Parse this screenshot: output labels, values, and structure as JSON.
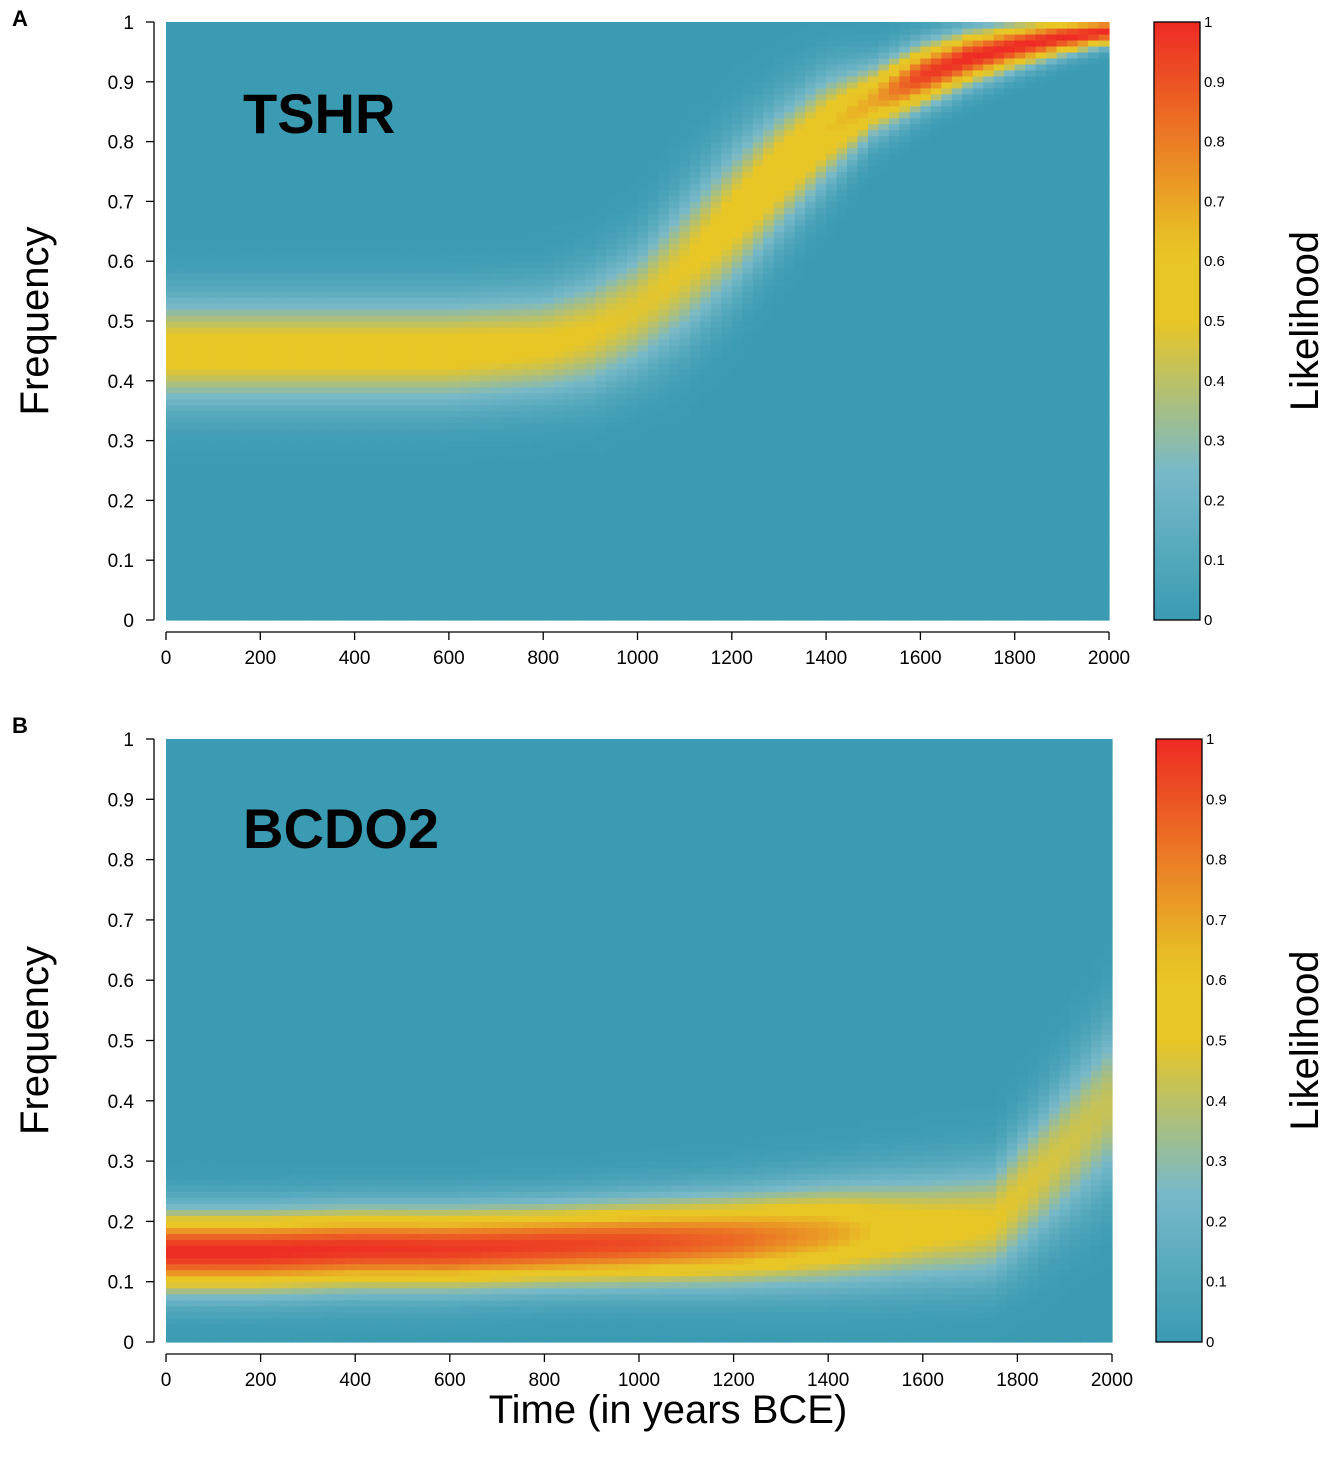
{
  "figure": {
    "xlabel": "Time (in years BCE)"
  },
  "colors": {
    "low": "#3a9bb3",
    "mid": "#e8c625",
    "high": "#ee2a24"
  },
  "chart_data": [
    {
      "type": "heatmap",
      "panel_label": "A",
      "gene_label": "TSHR",
      "xlabel": "Time (in years BCE)",
      "ylabel": "Frequency",
      "colorbar_label": "Likelihood",
      "xlim": [
        0,
        2000
      ],
      "ylim": [
        0,
        1
      ],
      "xticks": [
        "0",
        "200",
        "400",
        "600",
        "800",
        "1000",
        "1200",
        "1400",
        "1600",
        "1800",
        "2000"
      ],
      "yticks": [
        "0",
        "0.1",
        "0.2",
        "0.3",
        "0.4",
        "0.5",
        "0.6",
        "0.7",
        "0.8",
        "0.9",
        "1"
      ],
      "colorbar_ticks": [
        "0",
        "0.1",
        "0.2",
        "0.3",
        "0.4",
        "0.5",
        "0.6",
        "0.7",
        "0.8",
        "0.9",
        "1"
      ],
      "ridge": {
        "time": [
          0,
          200,
          400,
          600,
          800,
          900,
          1000,
          1100,
          1200,
          1300,
          1400,
          1500,
          1600,
          1700,
          1800,
          1900,
          2000
        ],
        "frequency": [
          0.45,
          0.45,
          0.45,
          0.45,
          0.46,
          0.48,
          0.52,
          0.59,
          0.67,
          0.75,
          0.82,
          0.87,
          0.91,
          0.94,
          0.96,
          0.975,
          0.985
        ],
        "likelihood": [
          0.55,
          0.55,
          0.55,
          0.55,
          0.52,
          0.5,
          0.48,
          0.5,
          0.55,
          0.6,
          0.62,
          0.7,
          0.95,
          1.0,
          1.0,
          1.0,
          1.0
        ],
        "width": [
          0.06,
          0.06,
          0.06,
          0.06,
          0.06,
          0.065,
          0.07,
          0.08,
          0.08,
          0.07,
          0.06,
          0.04,
          0.035,
          0.03,
          0.025,
          0.02,
          0.015
        ]
      }
    },
    {
      "type": "heatmap",
      "panel_label": "B",
      "gene_label": "BCDO2",
      "xlabel": "Time (in years BCE)",
      "ylabel": "Frequency",
      "colorbar_label": "Likelihood",
      "xlim": [
        0,
        2000
      ],
      "ylim": [
        0,
        1
      ],
      "xticks": [
        "0",
        "200",
        "400",
        "600",
        "800",
        "1000",
        "1200",
        "1400",
        "1600",
        "1800",
        "2000"
      ],
      "yticks": [
        "0",
        "0.1",
        "0.2",
        "0.3",
        "0.4",
        "0.5",
        "0.6",
        "0.7",
        "0.8",
        "0.9",
        "1"
      ],
      "colorbar_ticks": [
        "0",
        "0.1",
        "0.2",
        "0.3",
        "0.4",
        "0.5",
        "0.6",
        "0.7",
        "0.8",
        "0.9",
        "1"
      ],
      "ridge": {
        "time": [
          0,
          200,
          400,
          600,
          800,
          1000,
          1200,
          1400,
          1500,
          1600,
          1700,
          1750,
          1800,
          1900,
          2000
        ],
        "frequency": [
          0.15,
          0.15,
          0.155,
          0.155,
          0.16,
          0.165,
          0.17,
          0.18,
          0.185,
          0.19,
          0.195,
          0.2,
          0.24,
          0.32,
          0.4
        ],
        "likelihood": [
          1.0,
          1.0,
          0.98,
          0.97,
          0.95,
          0.92,
          0.85,
          0.72,
          0.62,
          0.55,
          0.52,
          0.5,
          0.48,
          0.45,
          0.42
        ],
        "width": [
          0.045,
          0.045,
          0.045,
          0.045,
          0.045,
          0.047,
          0.05,
          0.055,
          0.058,
          0.06,
          0.062,
          0.063,
          0.07,
          0.08,
          0.09
        ]
      }
    }
  ]
}
